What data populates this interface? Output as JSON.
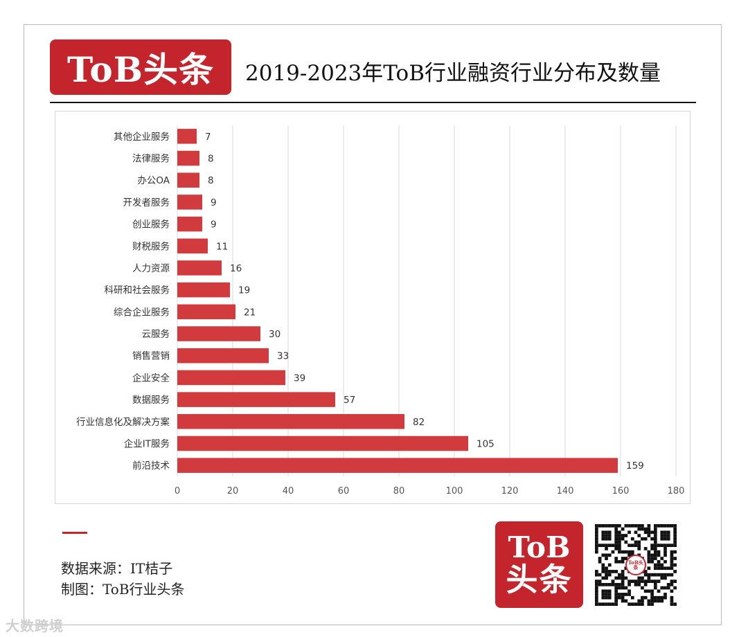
{
  "header": {
    "logo_text": "ToB头条",
    "title": "2019-2023年ToB行业融资行业分布及数量"
  },
  "colors": {
    "brand_red": "#c4252c",
    "bar": "#d13b3d",
    "grid": "#d9d9d9"
  },
  "chart_data": {
    "type": "bar",
    "orientation": "horizontal",
    "categories": [
      "其他企业服务",
      "法律服务",
      "办公OA",
      "开发者服务",
      "创业服务",
      "财税服务",
      "人力资源",
      "科研和社会服务",
      "综合企业服务",
      "云服务",
      "销售营销",
      "企业安全",
      "数据服务",
      "行业信息化及解决方案",
      "企业IT服务",
      "前沿技术"
    ],
    "values": [
      7,
      8,
      8,
      9,
      9,
      11,
      16,
      19,
      21,
      30,
      33,
      39,
      57,
      82,
      105,
      159
    ],
    "xlim": [
      0,
      180
    ],
    "xticks": [
      0,
      20,
      40,
      60,
      80,
      100,
      120,
      140,
      160,
      180
    ],
    "grid": "vertical",
    "data_labels": true
  },
  "footer": {
    "source_line": "数据来源：IT桔子",
    "credit_line": "制图：ToB行业头条",
    "logo_line1": "ToB",
    "logo_line2": "头条",
    "qr_center_text": "ToB头条",
    "watermark": "大数跨境"
  }
}
